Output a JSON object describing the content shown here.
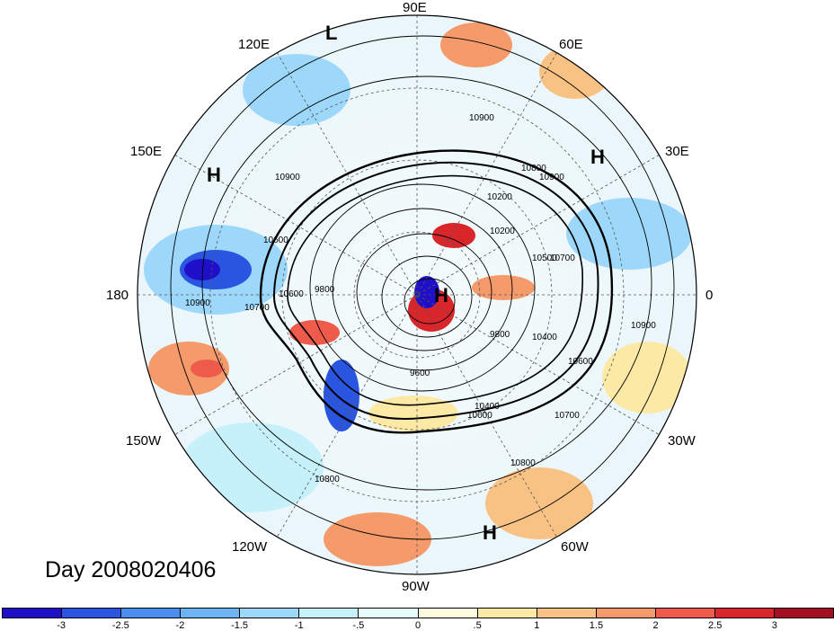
{
  "title": "Day 2008020406",
  "longitude_labels": [
    "90E",
    "60E",
    "30E",
    "0",
    "30W",
    "60W",
    "90W",
    "120W",
    "150W",
    "180",
    "150E",
    "120E"
  ],
  "pressure_centers": [
    "L",
    "H",
    "H",
    "H",
    "H"
  ],
  "contour_labels": [
    "10900",
    "10900",
    "10800",
    "10900",
    "10700",
    "10600",
    "10700",
    "10600",
    "9800",
    "9600",
    "10000",
    "10400",
    "10500",
    "10200",
    "9800",
    "10400",
    "10600",
    "10700",
    "10800",
    "10800",
    "10900",
    "10200",
    "10900"
  ],
  "colorbar": {
    "ticks": [
      "-3",
      "-2.5",
      "-2",
      "-1.5",
      "-1",
      "-.5",
      "0",
      ".5",
      "1",
      "1.5",
      "2",
      "2.5",
      "3"
    ],
    "colors": [
      "#1f0fc8",
      "#2a55e0",
      "#4a8ef0",
      "#6cb4f5",
      "#9dd8fa",
      "#c6f1fb",
      "#e6fdfd",
      "#fffbdc",
      "#fde9a6",
      "#f9c285",
      "#f59a6a",
      "#ef5b4a",
      "#d8262a",
      "#a50f22"
    ]
  }
}
